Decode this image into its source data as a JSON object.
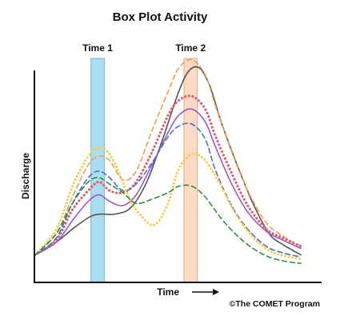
{
  "chart_data": {
    "type": "line",
    "title": "Box Plot Activity",
    "xlabel": "Time",
    "ylabel": "Discharge",
    "credit": "©The COMET Program",
    "xlim": [
      0,
      100
    ],
    "ylim": [
      0,
      100
    ],
    "grid": false,
    "legend": "none",
    "bands": [
      {
        "label": "Time 1",
        "x_start": 21,
        "x_end": 26,
        "color": "#9ed8f0",
        "border": "#6fb6dc"
      },
      {
        "label": "Time 2",
        "x_start": 56,
        "x_end": 61,
        "color": "#fbd3b8",
        "border": "#f2a77c"
      }
    ],
    "series": [
      {
        "color": "#555555",
        "style": "solid",
        "width": 1.6,
        "x": [
          0,
          8,
          15,
          21,
          25,
          30,
          36,
          42,
          48,
          54,
          58,
          62,
          66,
          70,
          76,
          82,
          88,
          93,
          100
        ],
        "y": [
          8,
          14,
          21,
          26,
          27,
          27,
          30,
          42,
          62,
          84,
          94,
          95,
          86,
          70,
          50,
          32,
          18,
          13,
          8
        ]
      },
      {
        "color": "#f0a050",
        "style": "dashed",
        "width": 1.6,
        "x": [
          0,
          8,
          14,
          20,
          24,
          28,
          33,
          38,
          44,
          50,
          54,
          59,
          64,
          68,
          74,
          80,
          87,
          93,
          100
        ],
        "y": [
          8,
          18,
          35,
          50,
          54,
          52,
          43,
          47,
          66,
          84,
          95,
          99,
          92,
          77,
          56,
          38,
          23,
          17,
          12
        ]
      },
      {
        "color": "#e06070",
        "style": "dotted",
        "width": 3.2,
        "x": [
          0,
          8,
          14,
          20,
          24,
          28,
          33,
          38,
          44,
          50,
          54,
          59,
          64,
          68,
          74,
          80,
          87,
          93,
          100
        ],
        "y": [
          8,
          15,
          29,
          38,
          42,
          38,
          37,
          42,
          56,
          73,
          80,
          82,
          76,
          63,
          46,
          31,
          20,
          16,
          12
        ]
      },
      {
        "color": "#9b59d0",
        "style": "solid",
        "width": 1.6,
        "x": [
          0,
          8,
          14,
          20,
          24,
          28,
          33,
          38,
          44,
          50,
          54,
          59,
          64,
          68,
          74,
          80,
          87,
          93,
          100
        ],
        "y": [
          8,
          14,
          24,
          33,
          36,
          33,
          31,
          36,
          50,
          65,
          73,
          76,
          70,
          58,
          41,
          28,
          19,
          15,
          11
        ]
      },
      {
        "color": "#4472c4",
        "style": "dashed",
        "width": 1.6,
        "x": [
          0,
          8,
          14,
          20,
          24,
          28,
          33,
          38,
          44,
          50,
          54,
          59,
          64,
          68,
          74,
          80,
          87,
          93,
          100
        ],
        "y": [
          8,
          16,
          32,
          44,
          47,
          44,
          38,
          41,
          51,
          63,
          68,
          69,
          62,
          47,
          31,
          20,
          12,
          9,
          7
        ]
      },
      {
        "color": "#f1d04a",
        "style": "dotted",
        "width": 3,
        "x": [
          0,
          8,
          14,
          20,
          24,
          28,
          32,
          36,
          40,
          45,
          50,
          54,
          59,
          64,
          70,
          76,
          83,
          90,
          100
        ],
        "y": [
          8,
          20,
          40,
          54,
          58,
          55,
          45,
          33,
          26,
          22,
          32,
          48,
          55,
          52,
          40,
          26,
          15,
          9,
          6
        ]
      },
      {
        "color": "#2f8f3a",
        "style": "dashed",
        "width": 1.6,
        "x": [
          0,
          8,
          14,
          20,
          24,
          28,
          33,
          38,
          44,
          50,
          54,
          59,
          64,
          70,
          76,
          82,
          88,
          94,
          100
        ],
        "y": [
          8,
          18,
          32,
          42,
          44,
          41,
          37,
          32,
          34,
          37,
          40,
          40,
          35,
          25,
          17,
          11,
          7,
          5,
          4
        ]
      }
    ]
  }
}
